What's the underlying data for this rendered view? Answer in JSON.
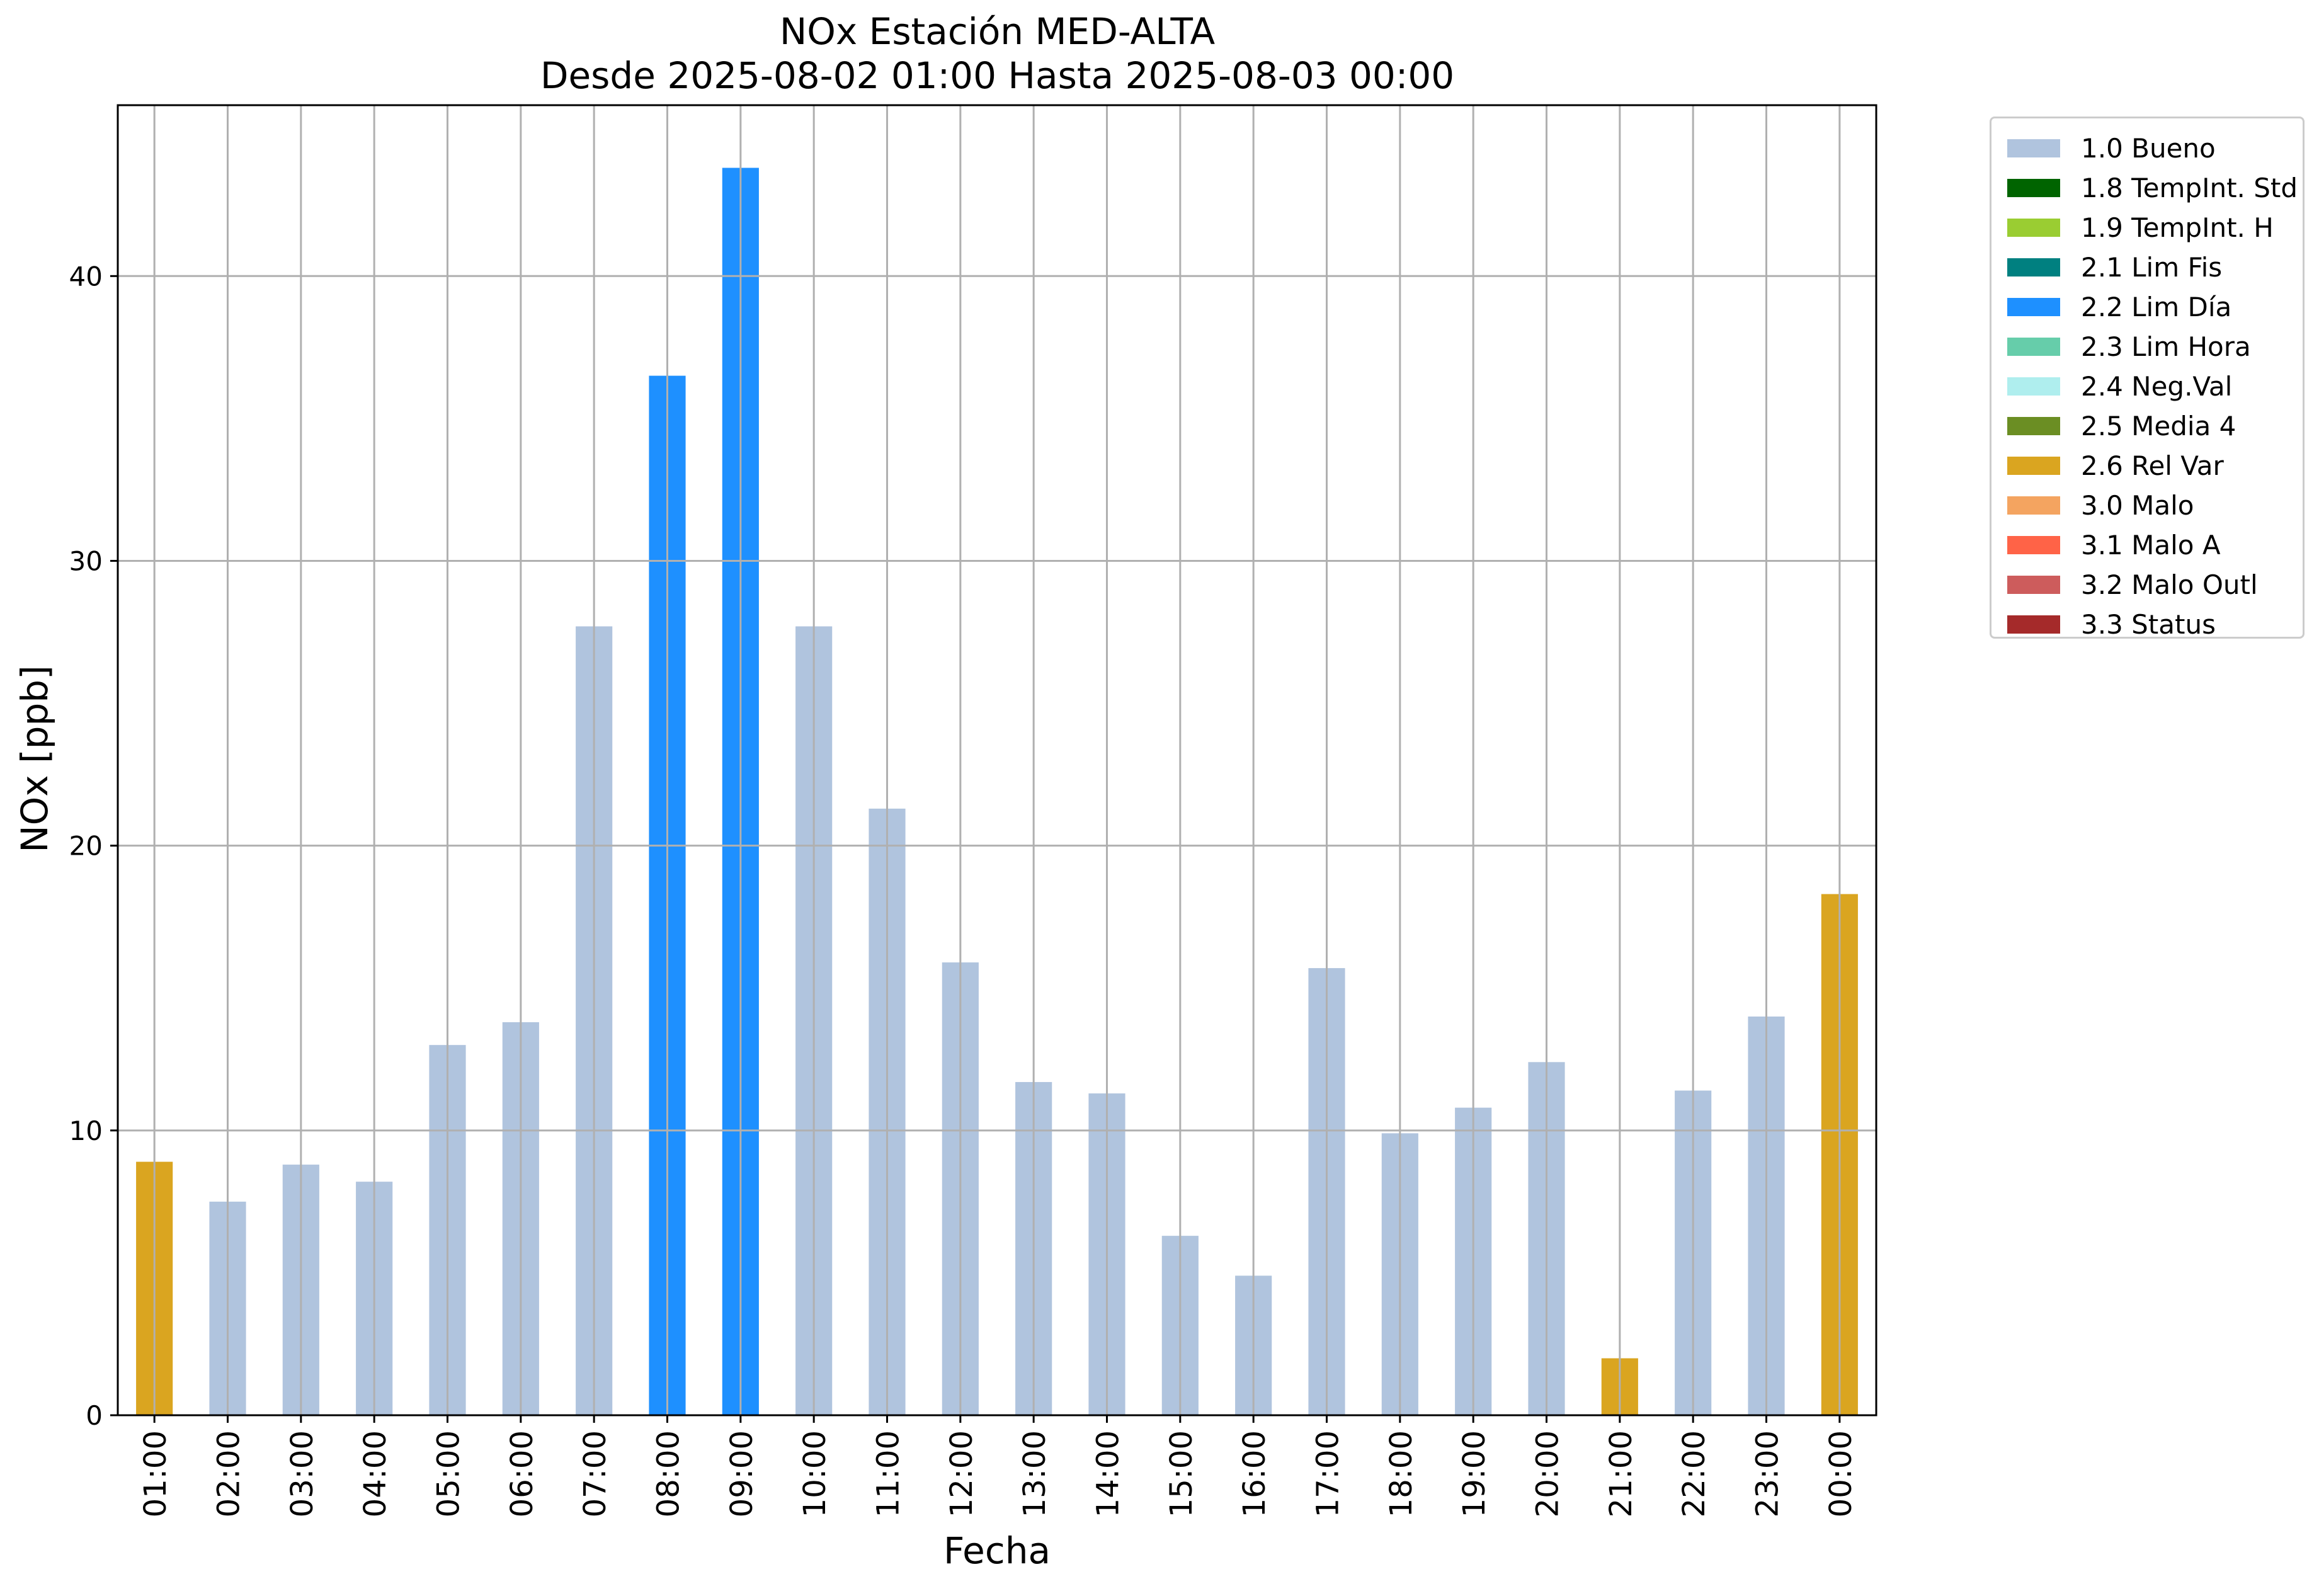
{
  "chart_data": {
    "type": "bar",
    "title": [
      "NOx Estación MED-ALTA",
      "Desde 2025-08-02 01:00 Hasta 2025-08-03 00:00"
    ],
    "xlabel": "Fecha",
    "ylabel": "NOx [ppb]",
    "ylim": [
      0,
      46
    ],
    "yticks": [
      0,
      10,
      20,
      30,
      40
    ],
    "grid": true,
    "legend_position": "outside-top-right",
    "categories": [
      "01:00",
      "02:00",
      "03:00",
      "04:00",
      "05:00",
      "06:00",
      "07:00",
      "08:00",
      "09:00",
      "10:00",
      "11:00",
      "12:00",
      "13:00",
      "14:00",
      "15:00",
      "16:00",
      "17:00",
      "18:00",
      "19:00",
      "20:00",
      "21:00",
      "22:00",
      "23:00",
      "00:00"
    ],
    "values": [
      8.9,
      7.5,
      8.8,
      8.2,
      13.0,
      13.8,
      27.7,
      36.5,
      43.8,
      27.7,
      21.3,
      15.9,
      11.7,
      11.3,
      6.3,
      4.9,
      15.7,
      9.9,
      10.8,
      12.4,
      2.0,
      11.4,
      14.0,
      18.3
    ],
    "flags": [
      "2.6 Rel Var",
      "1.0 Bueno",
      "1.0 Bueno",
      "1.0 Bueno",
      "1.0 Bueno",
      "1.0 Bueno",
      "1.0 Bueno",
      "2.2 Lim Día",
      "2.2 Lim Día",
      "1.0 Bueno",
      "1.0 Bueno",
      "1.0 Bueno",
      "1.0 Bueno",
      "1.0 Bueno",
      "1.0 Bueno",
      "1.0 Bueno",
      "1.0 Bueno",
      "1.0 Bueno",
      "1.0 Bueno",
      "1.0 Bueno",
      "2.6 Rel Var",
      "1.0 Bueno",
      "1.0 Bueno",
      "2.6 Rel Var"
    ],
    "legend": [
      {
        "label": "1.0 Bueno",
        "color": "#b0c4de"
      },
      {
        "label": "1.8 TempInt. Std",
        "color": "#006400"
      },
      {
        "label": "1.9 TempInt. H",
        "color": "#9acd32"
      },
      {
        "label": "2.1 Lim Fis",
        "color": "#008080"
      },
      {
        "label": "2.2 Lim Día",
        "color": "#1e90ff"
      },
      {
        "label": "2.3 Lim Hora",
        "color": "#66cdaa"
      },
      {
        "label": "2.4 Neg.Val",
        "color": "#afeeee"
      },
      {
        "label": "2.5 Media 4",
        "color": "#6b8e23"
      },
      {
        "label": "2.6 Rel Var",
        "color": "#daa520"
      },
      {
        "label": "3.0 Malo",
        "color": "#f4a460"
      },
      {
        "label": "3.1 Malo A",
        "color": "#ff6347"
      },
      {
        "label": "3.2 Malo Outl",
        "color": "#cd5c5c"
      },
      {
        "label": "3.3 Status",
        "color": "#a52a2a"
      }
    ]
  }
}
